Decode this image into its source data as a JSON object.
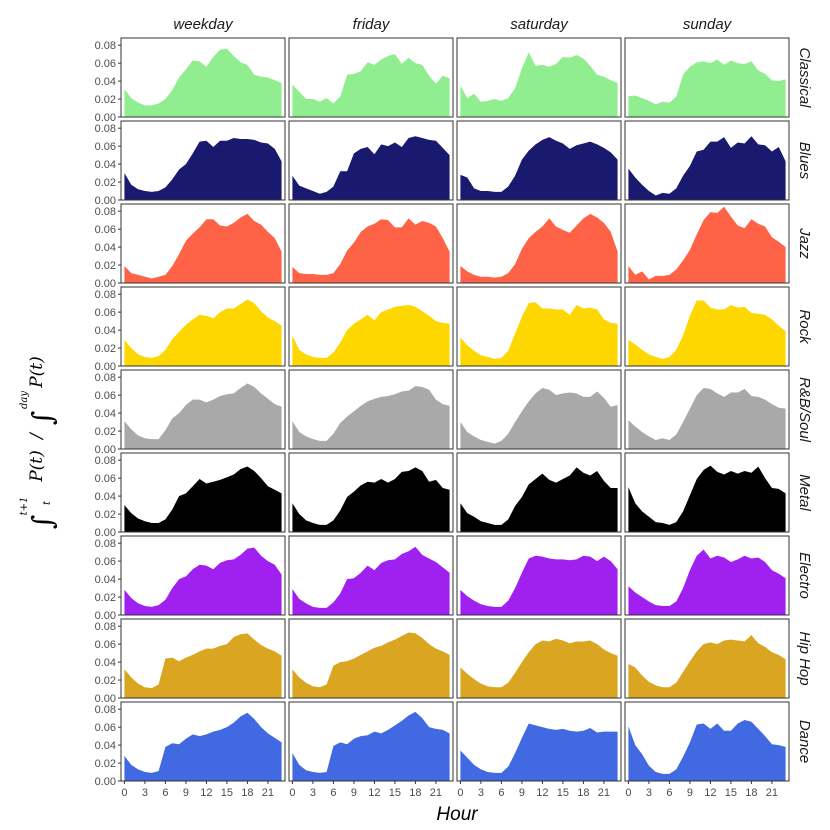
{
  "chart_data": {
    "type": "area",
    "facet_columns": [
      "weekday",
      "friday",
      "saturday",
      "sunday"
    ],
    "facet_rows": [
      "Classical",
      "Blues",
      "Jazz",
      "Rock",
      "R&B/Soul",
      "Metal",
      "Electro",
      "Hip Hop",
      "Dance"
    ],
    "colors": {
      "Classical": "#90ee90",
      "Blues": "#191970",
      "Jazz": "#ff6347",
      "Rock": "#ffd700",
      "R&B/Soul": "#a9a9a9",
      "Metal": "#000000",
      "Electro": "#a020f0",
      "Hip Hop": "#daa520",
      "Dance": "#4169e1"
    },
    "xlabel": "Hour",
    "ylabel": {
      "lower_limit": "t",
      "upper_limit": "t+1",
      "numerator": "P(t)",
      "separator": "/",
      "denom_upper_limit": "day",
      "denominator": "P(t)"
    },
    "x": [
      0,
      1,
      2,
      3,
      4,
      5,
      6,
      7,
      8,
      9,
      10,
      11,
      12,
      13,
      14,
      15,
      16,
      17,
      18,
      19,
      20,
      21,
      22,
      23
    ],
    "x_ticks": [
      0,
      3,
      6,
      9,
      12,
      15,
      18,
      21
    ],
    "x_tick_labels": [
      "0",
      "3",
      "6",
      "9",
      "12",
      "15",
      "18",
      "21"
    ],
    "xlim": [
      -0.5,
      23.5
    ],
    "y_ticks": [
      0.0,
      0.02,
      0.04,
      0.06,
      0.08
    ],
    "y_tick_labels": [
      "0.00",
      "0.02",
      "0.04",
      "0.06",
      "0.08"
    ],
    "ylim": [
      0,
      0.088
    ],
    "series": [
      {
        "genre": "Classical",
        "day": "weekday",
        "values": [
          0.031,
          0.021,
          0.016,
          0.013,
          0.013,
          0.015,
          0.02,
          0.03,
          0.044,
          0.053,
          0.063,
          0.062,
          0.056,
          0.067,
          0.075,
          0.076,
          0.068,
          0.061,
          0.058,
          0.047,
          0.045,
          0.044,
          0.041,
          0.038
        ]
      },
      {
        "genre": "Classical",
        "day": "friday",
        "values": [
          0.036,
          0.028,
          0.02,
          0.02,
          0.017,
          0.021,
          0.015,
          0.023,
          0.047,
          0.048,
          0.051,
          0.061,
          0.058,
          0.064,
          0.068,
          0.07,
          0.059,
          0.066,
          0.06,
          0.058,
          0.046,
          0.037,
          0.046,
          0.043
        ]
      },
      {
        "genre": "Classical",
        "day": "saturday",
        "values": [
          0.035,
          0.021,
          0.026,
          0.017,
          0.018,
          0.02,
          0.018,
          0.021,
          0.032,
          0.054,
          0.072,
          0.057,
          0.058,
          0.056,
          0.059,
          0.067,
          0.066,
          0.069,
          0.065,
          0.057,
          0.047,
          0.045,
          0.041,
          0.038
        ]
      },
      {
        "genre": "Classical",
        "day": "sunday",
        "values": [
          0.023,
          0.024,
          0.021,
          0.018,
          0.014,
          0.017,
          0.016,
          0.023,
          0.047,
          0.056,
          0.061,
          0.062,
          0.06,
          0.064,
          0.058,
          0.063,
          0.06,
          0.059,
          0.062,
          0.052,
          0.048,
          0.041,
          0.04,
          0.042
        ]
      },
      {
        "genre": "Blues",
        "day": "weekday",
        "values": [
          0.03,
          0.017,
          0.012,
          0.01,
          0.009,
          0.01,
          0.014,
          0.023,
          0.034,
          0.04,
          0.052,
          0.065,
          0.066,
          0.059,
          0.066,
          0.066,
          0.069,
          0.068,
          0.068,
          0.067,
          0.064,
          0.063,
          0.057,
          0.043
        ]
      },
      {
        "genre": "Blues",
        "day": "friday",
        "values": [
          0.027,
          0.016,
          0.013,
          0.01,
          0.007,
          0.009,
          0.015,
          0.032,
          0.032,
          0.052,
          0.057,
          0.059,
          0.051,
          0.062,
          0.06,
          0.064,
          0.059,
          0.069,
          0.071,
          0.069,
          0.067,
          0.066,
          0.058,
          0.05
        ]
      },
      {
        "genre": "Blues",
        "day": "saturday",
        "values": [
          0.028,
          0.025,
          0.013,
          0.01,
          0.01,
          0.009,
          0.009,
          0.015,
          0.027,
          0.045,
          0.055,
          0.062,
          0.067,
          0.07,
          0.066,
          0.063,
          0.057,
          0.061,
          0.063,
          0.065,
          0.062,
          0.058,
          0.053,
          0.045
        ]
      },
      {
        "genre": "Blues",
        "day": "sunday",
        "values": [
          0.035,
          0.025,
          0.017,
          0.01,
          0.005,
          0.008,
          0.007,
          0.013,
          0.027,
          0.038,
          0.054,
          0.056,
          0.065,
          0.065,
          0.07,
          0.058,
          0.064,
          0.063,
          0.071,
          0.062,
          0.061,
          0.054,
          0.059,
          0.043
        ]
      },
      {
        "genre": "Jazz",
        "day": "weekday",
        "values": [
          0.019,
          0.011,
          0.009,
          0.007,
          0.005,
          0.007,
          0.009,
          0.019,
          0.032,
          0.047,
          0.055,
          0.062,
          0.071,
          0.071,
          0.064,
          0.063,
          0.067,
          0.073,
          0.077,
          0.069,
          0.065,
          0.057,
          0.05,
          0.035
        ]
      },
      {
        "genre": "Jazz",
        "day": "friday",
        "values": [
          0.018,
          0.011,
          0.01,
          0.01,
          0.009,
          0.009,
          0.011,
          0.021,
          0.036,
          0.045,
          0.057,
          0.063,
          0.066,
          0.071,
          0.07,
          0.062,
          0.062,
          0.072,
          0.065,
          0.069,
          0.067,
          0.063,
          0.05,
          0.035
        ]
      },
      {
        "genre": "Jazz",
        "day": "saturday",
        "values": [
          0.019,
          0.013,
          0.009,
          0.007,
          0.007,
          0.006,
          0.007,
          0.011,
          0.021,
          0.038,
          0.05,
          0.057,
          0.063,
          0.072,
          0.063,
          0.059,
          0.056,
          0.064,
          0.072,
          0.077,
          0.073,
          0.067,
          0.057,
          0.035
        ]
      },
      {
        "genre": "Jazz",
        "day": "sunday",
        "values": [
          0.019,
          0.009,
          0.013,
          0.004,
          0.008,
          0.008,
          0.009,
          0.015,
          0.025,
          0.037,
          0.054,
          0.07,
          0.079,
          0.078,
          0.085,
          0.074,
          0.064,
          0.061,
          0.071,
          0.066,
          0.063,
          0.051,
          0.046,
          0.04
        ]
      },
      {
        "genre": "Rock",
        "day": "weekday",
        "values": [
          0.029,
          0.02,
          0.013,
          0.01,
          0.009,
          0.011,
          0.018,
          0.03,
          0.038,
          0.046,
          0.052,
          0.057,
          0.056,
          0.053,
          0.06,
          0.064,
          0.064,
          0.069,
          0.074,
          0.07,
          0.061,
          0.054,
          0.05,
          0.045
        ]
      },
      {
        "genre": "Rock",
        "day": "friday",
        "values": [
          0.034,
          0.018,
          0.013,
          0.01,
          0.009,
          0.009,
          0.015,
          0.026,
          0.04,
          0.047,
          0.052,
          0.057,
          0.051,
          0.06,
          0.063,
          0.066,
          0.067,
          0.068,
          0.066,
          0.061,
          0.056,
          0.05,
          0.048,
          0.047
        ]
      },
      {
        "genre": "Rock",
        "day": "saturday",
        "values": [
          0.032,
          0.023,
          0.017,
          0.012,
          0.01,
          0.008,
          0.009,
          0.017,
          0.036,
          0.055,
          0.07,
          0.071,
          0.064,
          0.064,
          0.063,
          0.063,
          0.057,
          0.068,
          0.064,
          0.065,
          0.063,
          0.052,
          0.048,
          0.047
        ]
      },
      {
        "genre": "Rock",
        "day": "sunday",
        "values": [
          0.029,
          0.024,
          0.018,
          0.013,
          0.01,
          0.008,
          0.01,
          0.018,
          0.034,
          0.056,
          0.073,
          0.073,
          0.065,
          0.063,
          0.063,
          0.068,
          0.065,
          0.066,
          0.059,
          0.058,
          0.057,
          0.052,
          0.045,
          0.039
        ]
      },
      {
        "genre": "R&B/Soul",
        "day": "weekday",
        "values": [
          0.031,
          0.022,
          0.015,
          0.012,
          0.011,
          0.011,
          0.021,
          0.034,
          0.04,
          0.049,
          0.055,
          0.055,
          0.052,
          0.055,
          0.059,
          0.061,
          0.062,
          0.068,
          0.073,
          0.069,
          0.062,
          0.056,
          0.05,
          0.047
        ]
      },
      {
        "genre": "R&B/Soul",
        "day": "friday",
        "values": [
          0.031,
          0.019,
          0.014,
          0.011,
          0.009,
          0.009,
          0.017,
          0.029,
          0.036,
          0.042,
          0.048,
          0.053,
          0.056,
          0.058,
          0.059,
          0.061,
          0.064,
          0.065,
          0.07,
          0.069,
          0.066,
          0.055,
          0.05,
          0.048
        ]
      },
      {
        "genre": "R&B/Soul",
        "day": "saturday",
        "values": [
          0.03,
          0.019,
          0.014,
          0.01,
          0.008,
          0.006,
          0.009,
          0.017,
          0.03,
          0.042,
          0.053,
          0.062,
          0.068,
          0.066,
          0.06,
          0.062,
          0.063,
          0.062,
          0.058,
          0.058,
          0.064,
          0.057,
          0.047,
          0.049
        ]
      },
      {
        "genre": "R&B/Soul",
        "day": "sunday",
        "values": [
          0.032,
          0.025,
          0.019,
          0.014,
          0.01,
          0.012,
          0.01,
          0.016,
          0.03,
          0.045,
          0.06,
          0.068,
          0.067,
          0.062,
          0.058,
          0.063,
          0.063,
          0.067,
          0.059,
          0.058,
          0.055,
          0.05,
          0.046,
          0.045
        ]
      },
      {
        "genre": "Metal",
        "day": "weekday",
        "values": [
          0.03,
          0.021,
          0.015,
          0.012,
          0.01,
          0.01,
          0.014,
          0.025,
          0.04,
          0.043,
          0.051,
          0.059,
          0.054,
          0.056,
          0.058,
          0.061,
          0.064,
          0.07,
          0.073,
          0.068,
          0.06,
          0.051,
          0.047,
          0.043
        ]
      },
      {
        "genre": "Metal",
        "day": "friday",
        "values": [
          0.032,
          0.02,
          0.013,
          0.01,
          0.008,
          0.008,
          0.013,
          0.024,
          0.039,
          0.045,
          0.052,
          0.056,
          0.055,
          0.059,
          0.055,
          0.059,
          0.067,
          0.068,
          0.072,
          0.068,
          0.056,
          0.058,
          0.049,
          0.047
        ]
      },
      {
        "genre": "Metal",
        "day": "saturday",
        "values": [
          0.032,
          0.021,
          0.017,
          0.012,
          0.01,
          0.008,
          0.008,
          0.014,
          0.029,
          0.039,
          0.053,
          0.059,
          0.065,
          0.058,
          0.055,
          0.059,
          0.063,
          0.072,
          0.066,
          0.063,
          0.068,
          0.057,
          0.049,
          0.049
        ]
      },
      {
        "genre": "Metal",
        "day": "sunday",
        "values": [
          0.05,
          0.032,
          0.023,
          0.017,
          0.011,
          0.01,
          0.008,
          0.011,
          0.023,
          0.041,
          0.059,
          0.069,
          0.074,
          0.067,
          0.064,
          0.068,
          0.065,
          0.068,
          0.066,
          0.073,
          0.06,
          0.049,
          0.048,
          0.043
        ]
      },
      {
        "genre": "Electro",
        "day": "weekday",
        "values": [
          0.028,
          0.019,
          0.013,
          0.01,
          0.009,
          0.011,
          0.017,
          0.03,
          0.04,
          0.043,
          0.051,
          0.056,
          0.055,
          0.051,
          0.058,
          0.061,
          0.062,
          0.067,
          0.074,
          0.075,
          0.066,
          0.06,
          0.056,
          0.045
        ]
      },
      {
        "genre": "Electro",
        "day": "friday",
        "values": [
          0.029,
          0.018,
          0.013,
          0.009,
          0.008,
          0.008,
          0.014,
          0.024,
          0.04,
          0.041,
          0.047,
          0.055,
          0.05,
          0.058,
          0.061,
          0.062,
          0.068,
          0.071,
          0.076,
          0.067,
          0.063,
          0.059,
          0.053,
          0.047
        ]
      },
      {
        "genre": "Electro",
        "day": "saturday",
        "values": [
          0.028,
          0.021,
          0.016,
          0.012,
          0.01,
          0.009,
          0.009,
          0.016,
          0.03,
          0.047,
          0.063,
          0.066,
          0.065,
          0.063,
          0.062,
          0.062,
          0.061,
          0.062,
          0.066,
          0.065,
          0.06,
          0.065,
          0.06,
          0.051
        ]
      },
      {
        "genre": "Electro",
        "day": "sunday",
        "values": [
          0.032,
          0.025,
          0.02,
          0.015,
          0.011,
          0.01,
          0.01,
          0.015,
          0.03,
          0.05,
          0.066,
          0.073,
          0.063,
          0.066,
          0.064,
          0.059,
          0.062,
          0.066,
          0.063,
          0.064,
          0.059,
          0.05,
          0.046,
          0.041
        ]
      },
      {
        "genre": "Hip Hop",
        "day": "weekday",
        "values": [
          0.032,
          0.023,
          0.016,
          0.012,
          0.011,
          0.015,
          0.044,
          0.045,
          0.041,
          0.045,
          0.048,
          0.052,
          0.055,
          0.055,
          0.058,
          0.06,
          0.068,
          0.071,
          0.072,
          0.065,
          0.059,
          0.055,
          0.052,
          0.047
        ]
      },
      {
        "genre": "Hip Hop",
        "day": "friday",
        "values": [
          0.032,
          0.023,
          0.017,
          0.013,
          0.012,
          0.015,
          0.036,
          0.04,
          0.041,
          0.044,
          0.048,
          0.052,
          0.056,
          0.058,
          0.062,
          0.065,
          0.069,
          0.073,
          0.072,
          0.067,
          0.06,
          0.055,
          0.052,
          0.048
        ]
      },
      {
        "genre": "Hip Hop",
        "day": "saturday",
        "values": [
          0.034,
          0.027,
          0.021,
          0.016,
          0.013,
          0.012,
          0.012,
          0.017,
          0.028,
          0.04,
          0.051,
          0.06,
          0.064,
          0.063,
          0.066,
          0.064,
          0.061,
          0.063,
          0.063,
          0.064,
          0.06,
          0.054,
          0.05,
          0.047
        ]
      },
      {
        "genre": "Hip Hop",
        "day": "sunday",
        "values": [
          0.038,
          0.034,
          0.025,
          0.018,
          0.014,
          0.012,
          0.012,
          0.017,
          0.029,
          0.041,
          0.052,
          0.06,
          0.062,
          0.06,
          0.064,
          0.065,
          0.064,
          0.063,
          0.07,
          0.061,
          0.057,
          0.051,
          0.048,
          0.043
        ]
      },
      {
        "genre": "Dance",
        "day": "weekday",
        "values": [
          0.028,
          0.018,
          0.013,
          0.01,
          0.009,
          0.011,
          0.038,
          0.042,
          0.041,
          0.047,
          0.052,
          0.05,
          0.052,
          0.055,
          0.057,
          0.06,
          0.065,
          0.072,
          0.076,
          0.069,
          0.06,
          0.053,
          0.048,
          0.043
        ]
      },
      {
        "genre": "Dance",
        "day": "friday",
        "values": [
          0.031,
          0.018,
          0.012,
          0.01,
          0.009,
          0.01,
          0.039,
          0.043,
          0.041,
          0.047,
          0.05,
          0.051,
          0.055,
          0.053,
          0.057,
          0.062,
          0.067,
          0.073,
          0.077,
          0.07,
          0.06,
          0.058,
          0.057,
          0.053
        ]
      },
      {
        "genre": "Dance",
        "day": "saturday",
        "values": [
          0.034,
          0.026,
          0.018,
          0.013,
          0.01,
          0.009,
          0.009,
          0.016,
          0.031,
          0.048,
          0.064,
          0.062,
          0.06,
          0.058,
          0.057,
          0.058,
          0.056,
          0.055,
          0.056,
          0.059,
          0.054,
          0.055,
          0.055,
          0.055
        ]
      },
      {
        "genre": "Dance",
        "day": "sunday",
        "values": [
          0.061,
          0.04,
          0.03,
          0.017,
          0.01,
          0.008,
          0.008,
          0.013,
          0.027,
          0.043,
          0.063,
          0.064,
          0.058,
          0.064,
          0.056,
          0.056,
          0.064,
          0.068,
          0.066,
          0.058,
          0.05,
          0.041,
          0.04,
          0.038
        ]
      }
    ]
  }
}
